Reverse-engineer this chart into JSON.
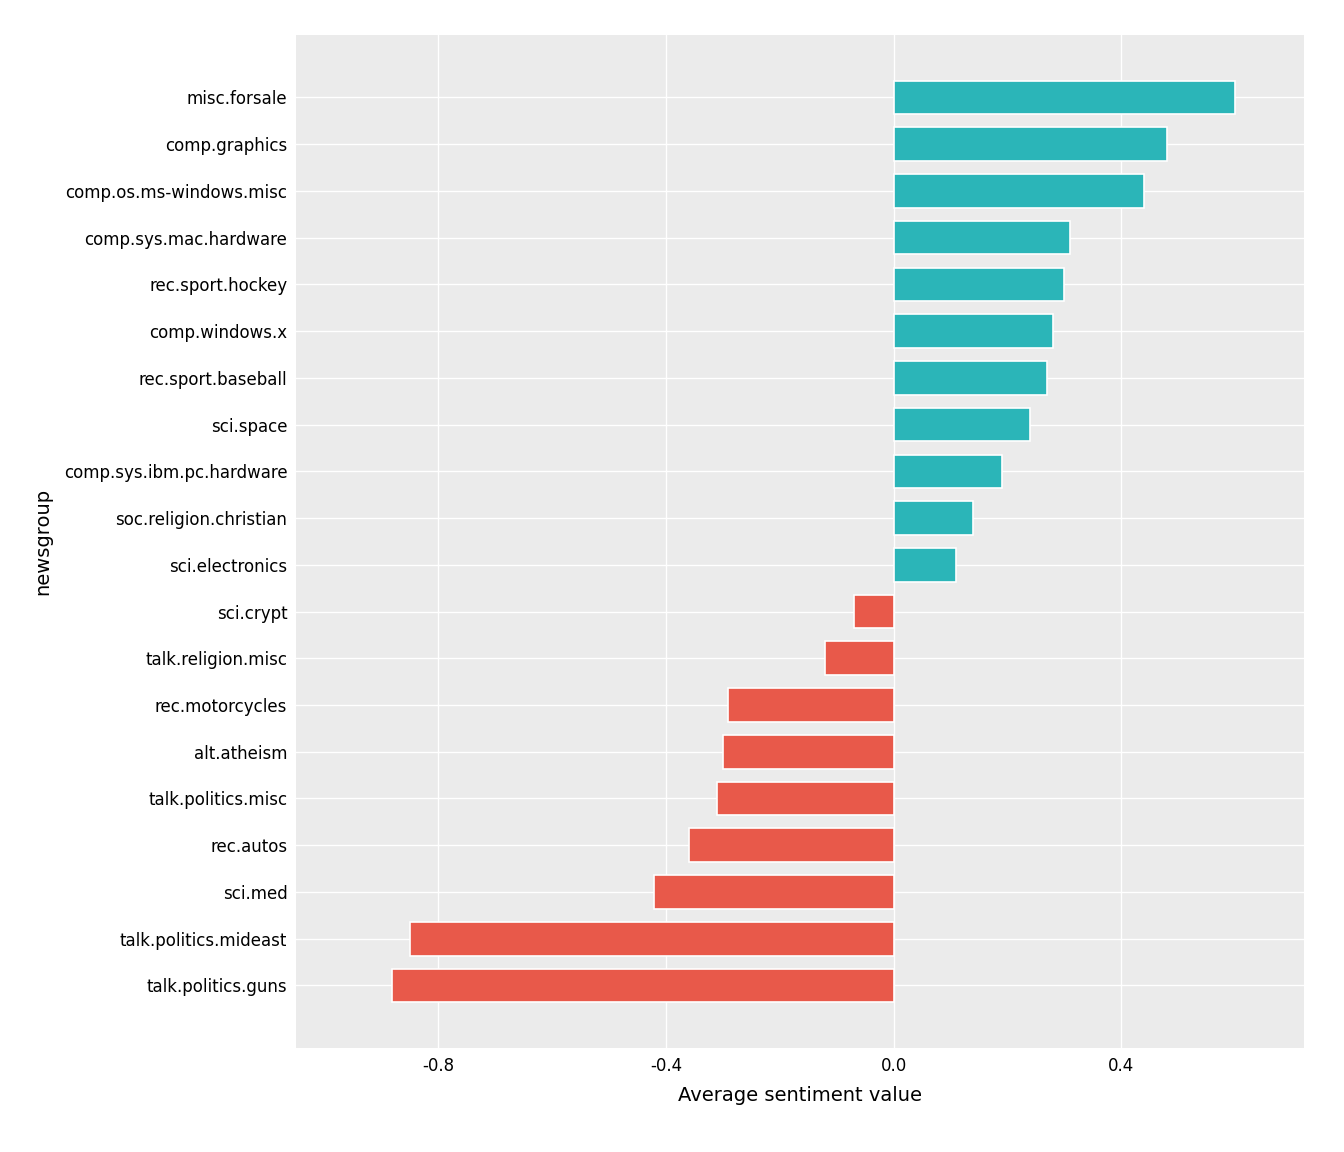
{
  "categories": [
    "talk.politics.guns",
    "talk.politics.mideast",
    "sci.med",
    "rec.autos",
    "talk.politics.misc",
    "alt.atheism",
    "rec.motorcycles",
    "talk.religion.misc",
    "sci.crypt",
    "sci.electronics",
    "soc.religion.christian",
    "comp.sys.ibm.pc.hardware",
    "sci.space",
    "rec.sport.baseball",
    "comp.windows.x",
    "rec.sport.hockey",
    "comp.sys.mac.hardware",
    "comp.os.ms-windows.misc",
    "comp.graphics",
    "misc.forsale"
  ],
  "values": [
    -0.88,
    -0.85,
    -0.42,
    -0.36,
    -0.31,
    -0.3,
    -0.29,
    -0.12,
    -0.07,
    0.11,
    0.14,
    0.19,
    0.24,
    0.27,
    0.28,
    0.3,
    0.31,
    0.44,
    0.48,
    0.6
  ],
  "positive_color": "#2bb5b8",
  "negative_color": "#e8594a",
  "background_color": "#ffffff",
  "panel_color": "#ebebeb",
  "grid_color": "#ffffff",
  "xlabel": "Average sentiment value",
  "ylabel": "newsgroup",
  "xlim": [
    -1.05,
    0.72
  ],
  "title_fontsize": 14,
  "axis_label_fontsize": 14,
  "tick_fontsize": 12,
  "bar_height": 0.72
}
